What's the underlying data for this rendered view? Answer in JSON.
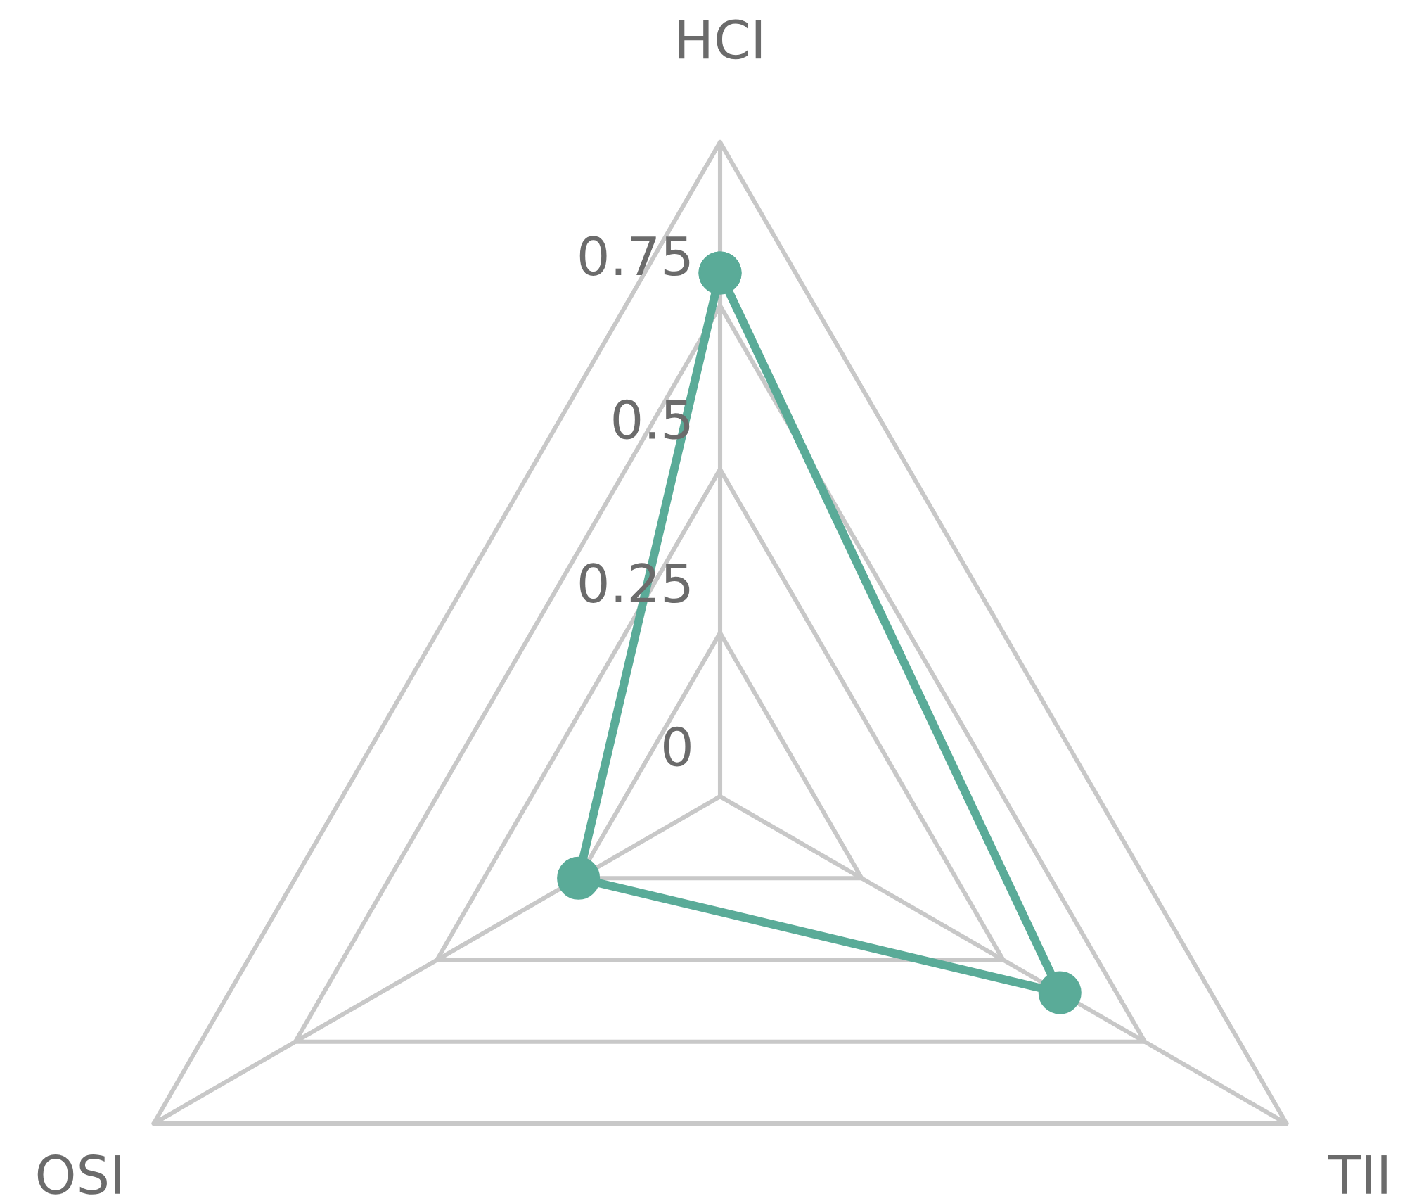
{
  "chart_data": {
    "type": "radar",
    "categories": [
      "HCI",
      "TII",
      "OSI"
    ],
    "series": [
      {
        "color": "#5aab98",
        "values": [
          0.8,
          0.6,
          0.25
        ]
      }
    ],
    "ylim": [
      0,
      1
    ],
    "yticks": [
      0,
      0.25,
      0.5,
      0.75
    ],
    "marker": "circle",
    "line_style": "solid",
    "grid": true
  }
}
